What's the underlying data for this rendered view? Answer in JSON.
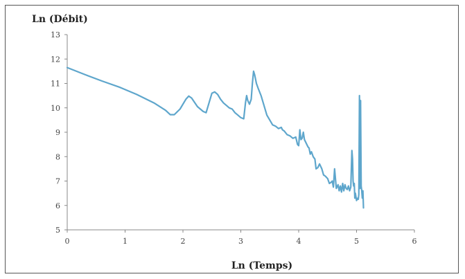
{
  "chart_data": {
    "type": "line",
    "title": "",
    "xlabel": "Ln (Temps)",
    "ylabel": "Ln (Débit)",
    "xlim": [
      0,
      6
    ],
    "ylim": [
      5,
      13
    ],
    "x_ticks": [
      "0",
      "1",
      "2",
      "3",
      "4",
      "5",
      "6"
    ],
    "y_ticks": [
      "5",
      "6",
      "7",
      "8",
      "9",
      "10",
      "11",
      "12",
      "13"
    ],
    "grid": false,
    "legend": "none",
    "line_color": "#5ea6cc",
    "series": [
      {
        "x": [
          0,
          0.3,
          0.6,
          0.9,
          1.2,
          1.5,
          1.7,
          1.78,
          1.85,
          1.95,
          2.05,
          2.1,
          2.15,
          2.25,
          2.35,
          2.4,
          2.45,
          2.5,
          2.55,
          2.6,
          2.65,
          2.7,
          2.75,
          2.8,
          2.85,
          2.9,
          2.95,
          3.0,
          3.05,
          3.08,
          3.1,
          3.12,
          3.15,
          3.18,
          3.2,
          3.22,
          3.24,
          3.27,
          3.3,
          3.35,
          3.4,
          3.45,
          3.5,
          3.55,
          3.6,
          3.65,
          3.7,
          3.72,
          3.75,
          3.8,
          3.85,
          3.9,
          3.95,
          3.98,
          4.0,
          4.02,
          4.04,
          4.06,
          4.08,
          4.1,
          4.12,
          4.14,
          4.16,
          4.18,
          4.2,
          4.22,
          4.25,
          4.28,
          4.3,
          4.33,
          4.36,
          4.4,
          4.43,
          4.46,
          4.5,
          4.53,
          4.56,
          4.58,
          4.6,
          4.62,
          4.65,
          4.68,
          4.7,
          4.72,
          4.74,
          4.76,
          4.78,
          4.8,
          4.82,
          4.84,
          4.86,
          4.88,
          4.9,
          4.92,
          4.93,
          4.94,
          4.95,
          4.96,
          4.97,
          4.98,
          5.0,
          5.02,
          5.03,
          5.04,
          5.05,
          5.06,
          5.07,
          5.08,
          5.09,
          5.1,
          5.11,
          5.12
        ],
        "values": [
          11.65,
          11.37,
          11.1,
          10.85,
          10.55,
          10.2,
          9.9,
          9.72,
          9.72,
          9.95,
          10.35,
          10.48,
          10.4,
          10.05,
          9.85,
          9.8,
          10.2,
          10.6,
          10.65,
          10.55,
          10.35,
          10.2,
          10.1,
          10.0,
          9.95,
          9.8,
          9.7,
          9.6,
          9.55,
          10.2,
          10.5,
          10.3,
          10.15,
          10.35,
          11.0,
          11.5,
          11.35,
          11.0,
          10.8,
          10.5,
          10.1,
          9.7,
          9.5,
          9.3,
          9.25,
          9.15,
          9.2,
          9.1,
          9.05,
          8.9,
          8.85,
          8.75,
          8.8,
          8.5,
          8.45,
          9.1,
          8.7,
          8.75,
          9.0,
          8.7,
          8.6,
          8.5,
          8.4,
          8.35,
          8.1,
          8.2,
          8.0,
          7.9,
          7.5,
          7.55,
          7.7,
          7.5,
          7.25,
          7.2,
          7.1,
          6.9,
          6.95,
          7.0,
          6.75,
          7.5,
          6.7,
          6.85,
          6.6,
          6.8,
          6.55,
          6.9,
          6.6,
          6.85,
          6.7,
          6.65,
          6.8,
          6.6,
          6.75,
          8.25,
          7.9,
          7.0,
          6.8,
          6.9,
          6.3,
          6.5,
          6.2,
          6.3,
          6.25,
          6.45,
          10.5,
          6.7,
          10.3,
          6.8,
          6.6,
          6.3,
          6.6,
          5.9
        ]
      }
    ]
  }
}
